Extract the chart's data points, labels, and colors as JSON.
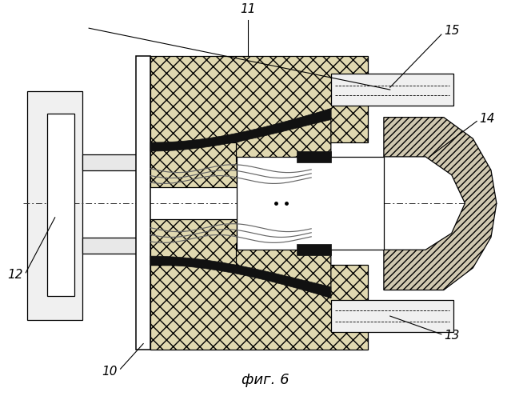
{
  "title": "фиг. 6",
  "bg_color": "#ffffff",
  "line_color": "#000000",
  "labels": [
    "10",
    "11",
    "12",
    "13",
    "14",
    "15"
  ]
}
